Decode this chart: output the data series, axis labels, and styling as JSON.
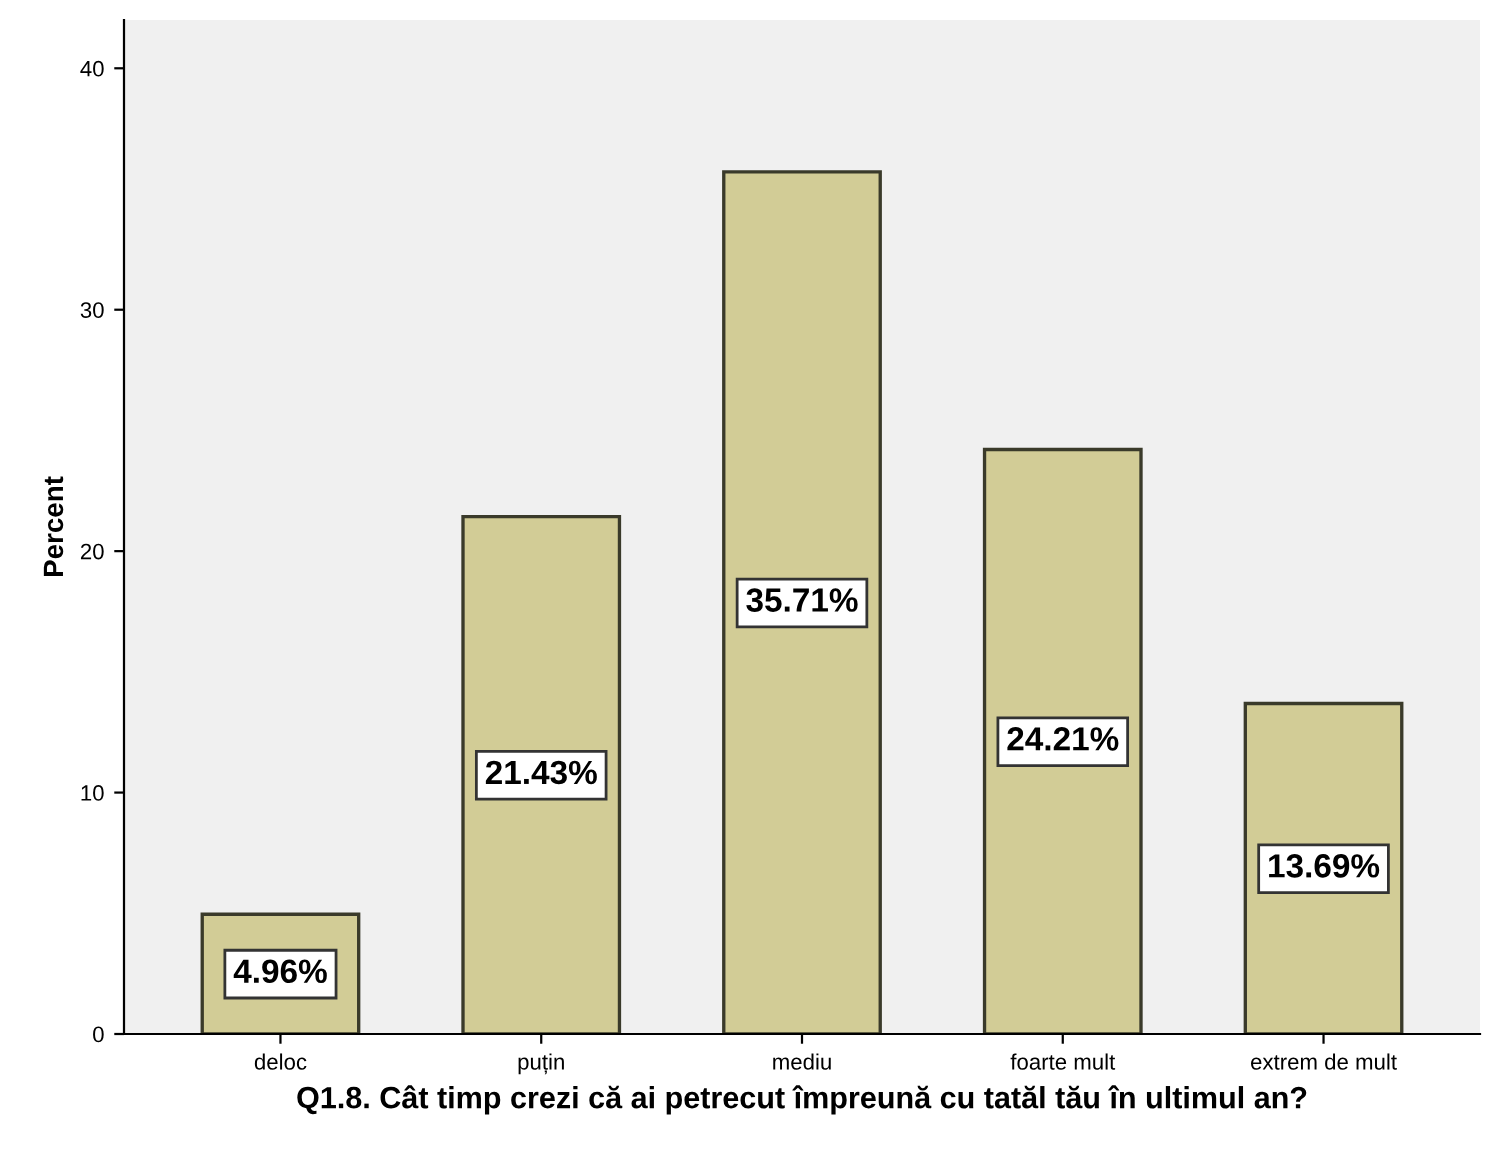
{
  "chart_data": {
    "type": "bar",
    "categories": [
      "deloc",
      "puțin",
      "mediu",
      "foarte mult",
      "extrem de mult"
    ],
    "values": [
      4.96,
      21.43,
      35.71,
      24.21,
      13.69
    ],
    "value_labels": [
      "4.96%",
      "21.43%",
      "35.71%",
      "24.21%",
      "13.69%"
    ],
    "color": "#d2cc96",
    "xlabel": "Q1.8. Cât timp crezi că ai petrecut împreună cu tatăl tău în ultimul an?",
    "ylabel": "Percent",
    "ylim": [
      0,
      42
    ],
    "yticks": [
      0,
      10,
      20,
      30,
      40
    ],
    "grid": false
  }
}
